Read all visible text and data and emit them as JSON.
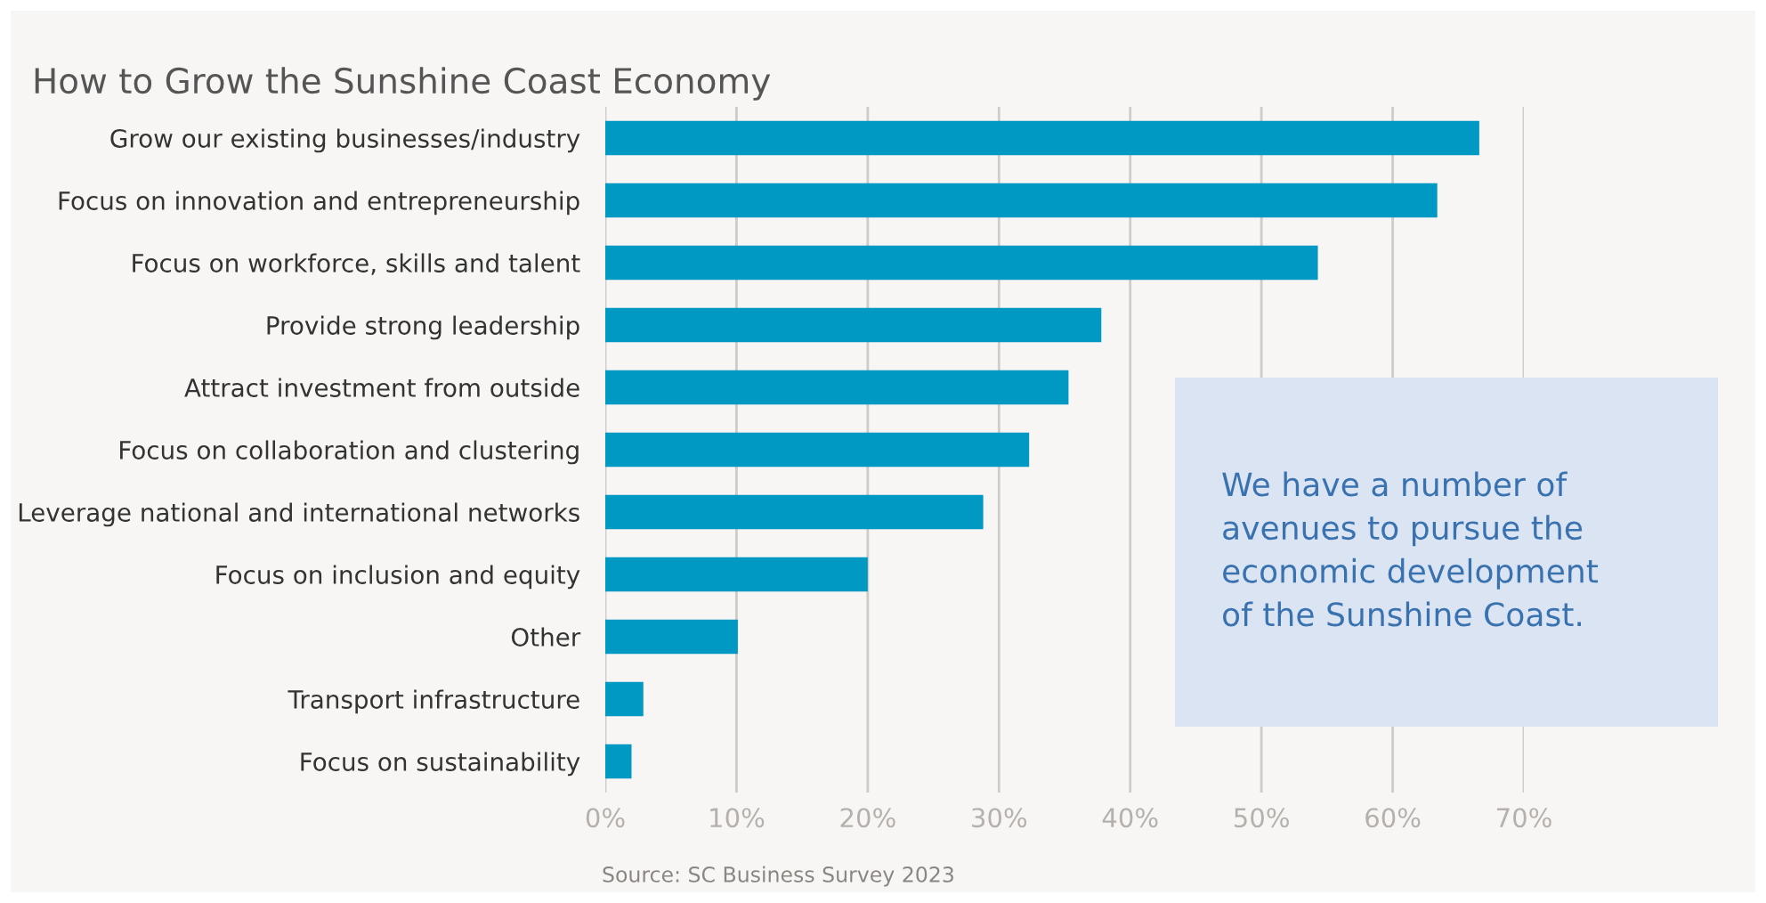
{
  "chart_data": {
    "type": "bar",
    "orientation": "horizontal",
    "title": "How to Grow the Sunshine Coast Economy",
    "categories": [
      "Grow our existing businesses/industry",
      "Focus on innovation and entrepreneurship",
      "Focus on workforce, skills and talent",
      "Provide strong leadership",
      "Attract investment from outside",
      "Focus on collaboration and clustering",
      "Leverage national and international networks",
      "Focus on inclusion and equity",
      "Other",
      "Transport infrastructure",
      "Focus on sustainability"
    ],
    "values": [
      66.6,
      63.4,
      54.3,
      37.8,
      35.3,
      32.3,
      28.8,
      20.0,
      10.1,
      2.9,
      2.0
    ],
    "color": "#0099c4",
    "xlim": [
      0,
      70
    ],
    "xticks": [
      {
        "value": 0,
        "label": "0%"
      },
      {
        "value": 10,
        "label": "10%"
      },
      {
        "value": 20,
        "label": "20%"
      },
      {
        "value": 30,
        "label": "30%"
      },
      {
        "value": 40,
        "label": "40%"
      },
      {
        "value": 50,
        "label": "50%"
      },
      {
        "value": 60,
        "label": "60%"
      },
      {
        "value": 70,
        "label": "70%"
      }
    ],
    "grid": "x",
    "annotations": [
      "We have a number of\navenues to pursue the\neconomic development\nof the Sunshine Coast.",
      "Source: SC Business Survey 2023"
    ]
  }
}
